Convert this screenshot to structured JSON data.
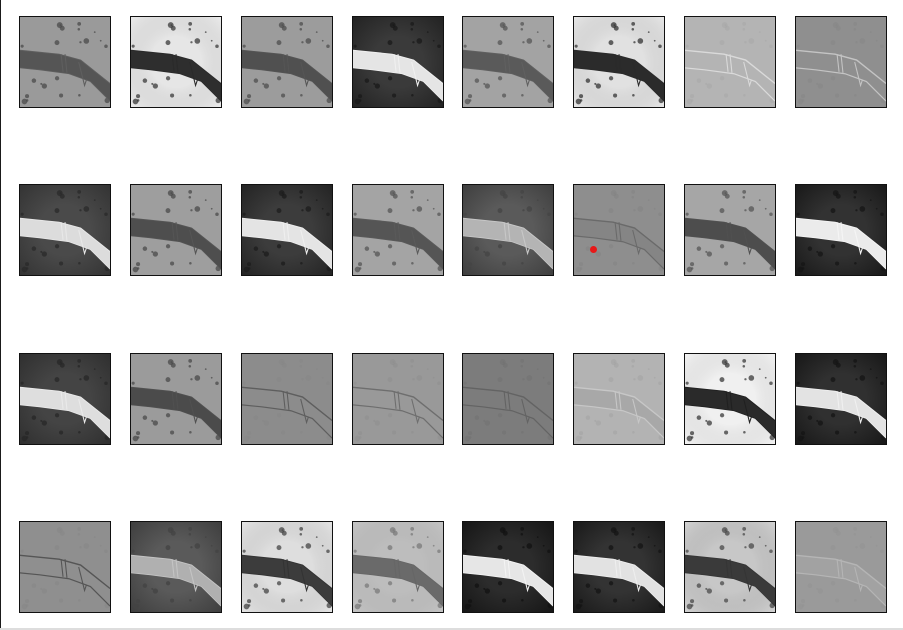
{
  "grid": {
    "rows": 4,
    "cols": 8,
    "tiles": [
      {
        "bg": "#9a9a9a",
        "band": "#555555",
        "edge": "#5f5f5f",
        "spots": "#4a4a4a",
        "vignette": 0.0,
        "style": "dark"
      },
      {
        "bg": "#e6e6e6",
        "band": "#2e2e2e",
        "edge": "#2a2a2a",
        "spots": "#3a3a3a",
        "vignette": 0.2,
        "style": "dark"
      },
      {
        "bg": "#9c9c9c",
        "band": "#505050",
        "edge": "#555555",
        "spots": "#4d4d4d",
        "vignette": 0.0,
        "style": "dark"
      },
      {
        "bg": "#3a3a3a",
        "band": "#e5e5e5",
        "edge": "#f0f0f0",
        "spots": "#1a1a1a",
        "vignette": 0.4,
        "style": "light"
      },
      {
        "bg": "#a3a3a3",
        "band": "#5a5a5a",
        "edge": "#606060",
        "spots": "#555555",
        "vignette": 0.0,
        "style": "dark"
      },
      {
        "bg": "#e1e1e1",
        "band": "#2b2b2b",
        "edge": "#2a2a2a",
        "spots": "#333333",
        "vignette": 0.2,
        "style": "dark"
      },
      {
        "bg": "#b4b4b4",
        "band": "#b4b4b4",
        "edge": "#dadada",
        "spots": "#a6a6a6",
        "vignette": 0.0,
        "style": "emboss"
      },
      {
        "bg": "#8f8f8f",
        "band": "#8f8f8f",
        "edge": "#c4c4c4",
        "spots": "#858585",
        "vignette": 0.0,
        "style": "emboss"
      },
      {
        "bg": "#4a4a4a",
        "band": "#dcdcdc",
        "edge": "#e8e8e8",
        "spots": "#2a2a2a",
        "vignette": 0.3,
        "style": "light"
      },
      {
        "bg": "#9e9e9e",
        "band": "#4e4e4e",
        "edge": "#555555",
        "spots": "#4a4a4a",
        "vignette": 0.0,
        "style": "dark"
      },
      {
        "bg": "#3c3c3c",
        "band": "#e4e4e4",
        "edge": "#efefef",
        "spots": "#1c1c1c",
        "vignette": 0.4,
        "style": "light"
      },
      {
        "bg": "#a4a4a4",
        "band": "#555555",
        "edge": "#5a5a5a",
        "spots": "#565656",
        "vignette": 0.0,
        "style": "dark"
      },
      {
        "bg": "#5a5a5a",
        "band": "#b4b4b4",
        "edge": "#c8c8c8",
        "spots": "#444444",
        "vignette": 0.3,
        "style": "light"
      },
      {
        "bg": "#8e8e8e",
        "band": "#858585",
        "edge": "#6a6a6a",
        "spots": "#828282",
        "vignette": 0.0,
        "style": "emboss"
      },
      {
        "bg": "#a6a6a6",
        "band": "#4d4d4d",
        "edge": "#505050",
        "spots": "#555555",
        "vignette": 0.0,
        "style": "dark"
      },
      {
        "bg": "#323232",
        "band": "#ebebeb",
        "edge": "#f5f5f5",
        "spots": "#161616",
        "vignette": 0.5,
        "style": "light"
      },
      {
        "bg": "#444444",
        "band": "#dedede",
        "edge": "#eaeaea",
        "spots": "#272727",
        "vignette": 0.3,
        "style": "light"
      },
      {
        "bg": "#9b9b9b",
        "band": "#4b4b4b",
        "edge": "#505050",
        "spots": "#4a4a4a",
        "vignette": 0.0,
        "style": "dark"
      },
      {
        "bg": "#8c8c8c",
        "band": "#8c8c8c",
        "edge": "#5e5e5e",
        "spots": "#858585",
        "vignette": 0.0,
        "style": "emboss"
      },
      {
        "bg": "#999999",
        "band": "#999999",
        "edge": "#6e6e6e",
        "spots": "#8d8d8d",
        "vignette": 0.0,
        "style": "emboss"
      },
      {
        "bg": "#7c7c7c",
        "band": "#7c7c7c",
        "edge": "#636363",
        "spots": "#707070",
        "vignette": 0.0,
        "style": "emboss"
      },
      {
        "bg": "#b3b3b3",
        "band": "#a8a8a8",
        "edge": "#c7c7c7",
        "spots": "#a1a1a1",
        "vignette": 0.0,
        "style": "emboss"
      },
      {
        "bg": "#f0f0f0",
        "band": "#2a2a2a",
        "edge": "#202020",
        "spots": "#3a3a3a",
        "vignette": 0.2,
        "style": "dark"
      },
      {
        "bg": "#303030",
        "band": "#e3e3e3",
        "edge": "#f0f0f0",
        "spots": "#141414",
        "vignette": 0.5,
        "style": "light"
      },
      {
        "bg": "#8f8f8f",
        "band": "#8f8f8f",
        "edge": "#555555",
        "spots": "#868686",
        "vignette": 0.0,
        "style": "emboss"
      },
      {
        "bg": "#5a5a5a",
        "band": "#b0b0b0",
        "edge": "#c4c4c4",
        "spots": "#434343",
        "vignette": 0.3,
        "style": "light"
      },
      {
        "bg": "#dedede",
        "band": "#3c3c3c",
        "edge": "#333333",
        "spots": "#444444",
        "vignette": 0.2,
        "style": "dark"
      },
      {
        "bg": "#bdbdbd",
        "band": "#6a6a6a",
        "edge": "#666666",
        "spots": "#7a7a7a",
        "vignette": 0.1,
        "style": "dark"
      },
      {
        "bg": "#2c2c2c",
        "band": "#e6e6e6",
        "edge": "#f3f3f3",
        "spots": "#121212",
        "vignette": 0.5,
        "style": "light"
      },
      {
        "bg": "#333333",
        "band": "#e2e2e2",
        "edge": "#eeeeee",
        "spots": "#141414",
        "vignette": 0.5,
        "style": "light"
      },
      {
        "bg": "#c7c7c7",
        "band": "#3a3a3a",
        "edge": "#353535",
        "spots": "#4a4a4a",
        "vignette": 0.2,
        "style": "dark"
      },
      {
        "bg": "#9a9a9a",
        "band": "#a2a2a2",
        "edge": "#b5b5b5",
        "spots": "#929292",
        "vignette": 0.0,
        "style": "emboss"
      }
    ]
  },
  "marker": {
    "color": "#e81818",
    "tile_index": 13
  }
}
